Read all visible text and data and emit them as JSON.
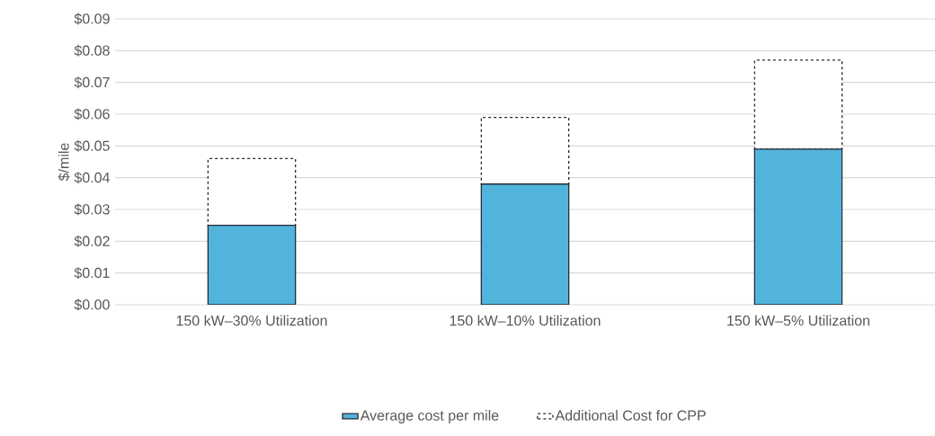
{
  "chart_data": {
    "type": "bar",
    "stacked": true,
    "ylabel": "$/mile",
    "categories": [
      "150 kW–30% Utilization",
      "150 kW–10% Utilization",
      "150 kW–5% Utilization"
    ],
    "series": [
      {
        "name": "Average cost per mile",
        "color": "#52b4dc",
        "values": [
          0.025,
          0.038,
          0.049
        ]
      },
      {
        "name": "Additional Cost for CPP",
        "color": "#ffffff",
        "line_style": "dashed",
        "values": [
          0.021,
          0.021,
          0.028
        ]
      }
    ],
    "ylim": [
      0,
      0.09
    ],
    "yticks": [
      {
        "value": 0,
        "label": "$0.00"
      },
      {
        "value": 0.01,
        "label": "$0.01"
      },
      {
        "value": 0.02,
        "label": "$0.02"
      },
      {
        "value": 0.03,
        "label": "$0.03"
      },
      {
        "value": 0.04,
        "label": "$0.04"
      },
      {
        "value": 0.05,
        "label": "$0.05"
      },
      {
        "value": 0.06,
        "label": "$0.06"
      },
      {
        "value": 0.07,
        "label": "$0.07"
      },
      {
        "value": 0.08,
        "label": "$0.08"
      },
      {
        "value": 0.09,
        "label": "$0.09"
      }
    ],
    "grid": "y",
    "legend": "bottom"
  }
}
